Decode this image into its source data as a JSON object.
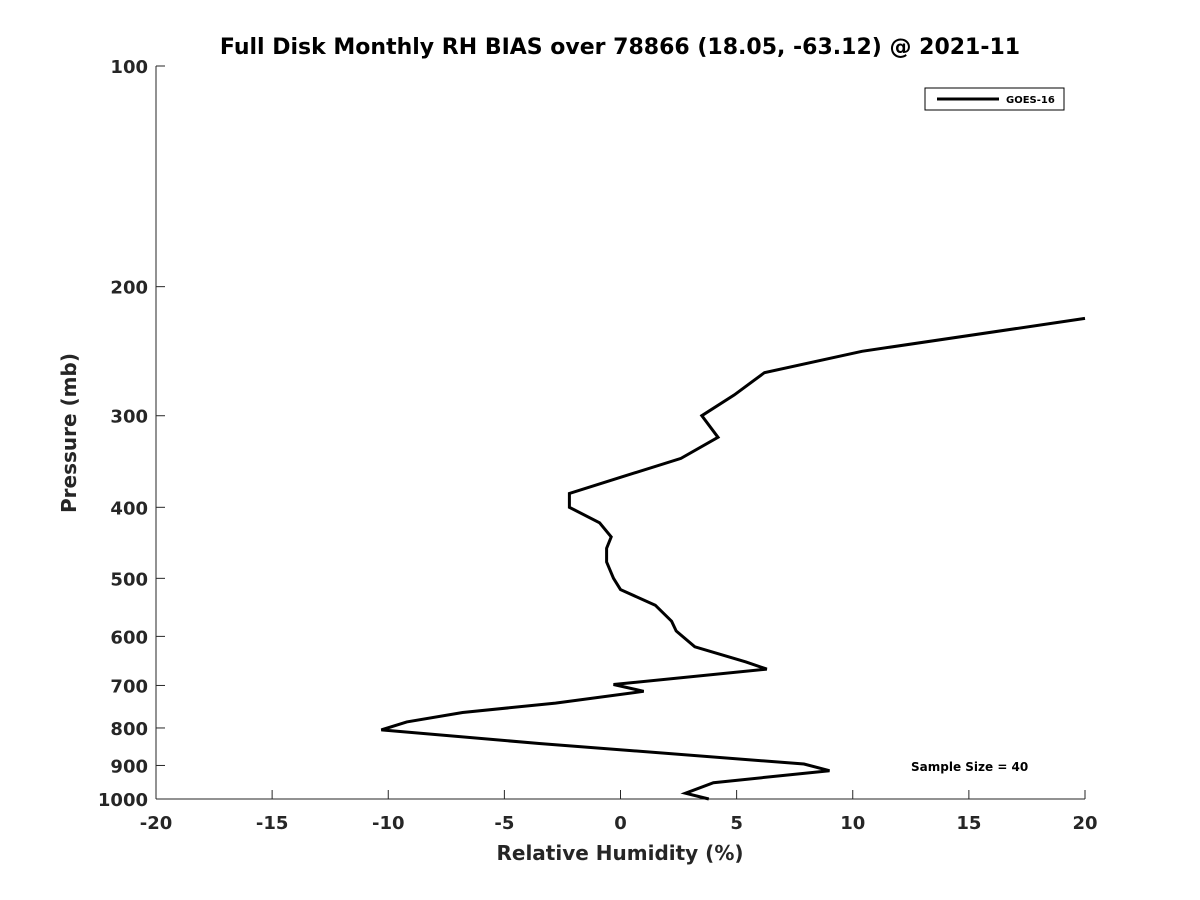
{
  "chart_data": {
    "type": "line",
    "title": "Full Disk Monthly RH BIAS over 78866 (18.05, -63.12) @ 2021-11",
    "xlabel": "Relative Humidity (%)",
    "ylabel": "Pressure (mb)",
    "xlim": [
      -20,
      20
    ],
    "ylim": [
      100,
      1000
    ],
    "y_scale": "log",
    "y_reversed": true,
    "grid": false,
    "legend_position": "top-right",
    "x_ticks": [
      -20,
      -15,
      -10,
      -5,
      0,
      5,
      10,
      15,
      20
    ],
    "x_tick_labels": [
      "-20",
      "-15",
      "-10",
      "-5",
      "0",
      "5",
      "10",
      "15",
      "20"
    ],
    "y_ticks": [
      100,
      200,
      300,
      400,
      500,
      600,
      700,
      800,
      900,
      1000
    ],
    "y_tick_labels": [
      "100",
      "200",
      "300",
      "400",
      "500",
      "600",
      "700",
      "800",
      "900",
      "1000"
    ],
    "series": [
      {
        "name": "GOES-16",
        "color": "#000000",
        "x": [
          20.0,
          10.4,
          6.2,
          4.9,
          3.5,
          4.2,
          2.6,
          0.0,
          -2.2,
          -2.2,
          -0.9,
          -0.4,
          -0.6,
          -0.6,
          -0.3,
          0.0,
          1.5,
          2.2,
          2.4,
          3.2,
          5.4,
          6.3,
          -0.3,
          1.0,
          -2.8,
          -6.8,
          -9.2,
          -10.3,
          -3.5,
          7.9,
          9.0,
          4.0,
          2.8,
          3.8
        ],
        "y": [
          221,
          245,
          262,
          281,
          300,
          321,
          343,
          364,
          383,
          400,
          420,
          439,
          455,
          475,
          500,
          518,
          544,
          572,
          590,
          620,
          650,
          665,
          698,
          713,
          740,
          762,
          785,
          805,
          840,
          896,
          915,
          950,
          982,
          1000
        ]
      }
    ],
    "annotations": [
      "Sample Size = 40"
    ]
  }
}
